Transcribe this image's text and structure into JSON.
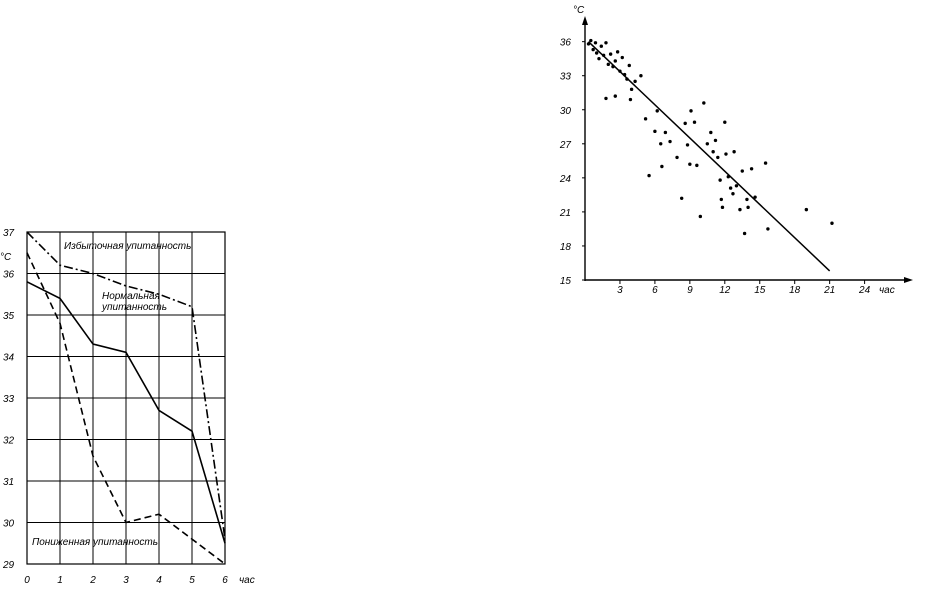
{
  "chart_data": [
    {
      "type": "line",
      "title": "",
      "xlabel": "час",
      "ylabel": "°C",
      "x_ticks": [
        "0",
        "1",
        "2",
        "3",
        "4",
        "5",
        "6"
      ],
      "y_ticks": [
        "29",
        "30",
        "31",
        "32",
        "33",
        "34",
        "35",
        "36",
        "37"
      ],
      "xlim": [
        0,
        6
      ],
      "ylim": [
        29,
        37
      ],
      "grid": true,
      "x": [
        0,
        1,
        2,
        3,
        4,
        5,
        6
      ],
      "series": [
        {
          "name": "Нормальная упитанность",
          "style": "solid",
          "values": [
            35.8,
            35.4,
            34.3,
            34.1,
            32.7,
            32.2,
            29.5
          ]
        },
        {
          "name": "Избыточная упитанность",
          "style": "dashdot",
          "values": [
            37.0,
            36.2,
            36.0,
            35.7,
            35.5,
            35.2,
            29.6
          ]
        },
        {
          "name": "Пониженная упитанность",
          "style": "dashed",
          "values": [
            36.5,
            34.8,
            31.6,
            30.0,
            30.2,
            29.6,
            29.0
          ]
        }
      ],
      "annotations": [
        "Избыточная упитанность",
        "Нормальная упитанность",
        "Пониженная упитанность"
      ]
    },
    {
      "type": "scatter",
      "title": "",
      "xlabel": "час",
      "ylabel": "°C",
      "x_ticks": [
        "3",
        "6",
        "9",
        "12",
        "15",
        "18",
        "21",
        "24"
      ],
      "y_ticks": [
        "15",
        "18",
        "21",
        "24",
        "27",
        "30",
        "33",
        "36"
      ],
      "xlim": [
        0,
        27
      ],
      "ylim": [
        15,
        37
      ],
      "grid": false,
      "points": [
        [
          0.3,
          35.8
        ],
        [
          0.5,
          36.1
        ],
        [
          0.7,
          35.3
        ],
        [
          0.9,
          35.9
        ],
        [
          1.0,
          35.0
        ],
        [
          1.2,
          34.5
        ],
        [
          1.4,
          35.6
        ],
        [
          1.6,
          34.8
        ],
        [
          1.8,
          35.9
        ],
        [
          2.0,
          34.0
        ],
        [
          2.2,
          34.9
        ],
        [
          2.4,
          33.8
        ],
        [
          2.6,
          34.3
        ],
        [
          2.8,
          35.1
        ],
        [
          3.0,
          33.4
        ],
        [
          3.2,
          34.6
        ],
        [
          3.4,
          33.1
        ],
        [
          3.6,
          32.7
        ],
        [
          3.8,
          33.9
        ],
        [
          4.0,
          31.8
        ],
        [
          4.3,
          32.5
        ],
        [
          1.8,
          31.0
        ],
        [
          2.6,
          31.2
        ],
        [
          3.9,
          30.9
        ],
        [
          4.8,
          33.0
        ],
        [
          5.2,
          29.2
        ],
        [
          5.5,
          24.2
        ],
        [
          6.0,
          28.1
        ],
        [
          6.2,
          29.9
        ],
        [
          6.5,
          27.0
        ],
        [
          6.6,
          25.0
        ],
        [
          6.9,
          28.0
        ],
        [
          7.3,
          27.2
        ],
        [
          7.9,
          25.8
        ],
        [
          8.3,
          22.2
        ],
        [
          8.6,
          28.8
        ],
        [
          8.8,
          26.9
        ],
        [
          9.0,
          25.2
        ],
        [
          9.1,
          29.9
        ],
        [
          9.4,
          28.9
        ],
        [
          9.6,
          25.1
        ],
        [
          9.9,
          20.6
        ],
        [
          10.2,
          30.6
        ],
        [
          10.5,
          27.0
        ],
        [
          10.8,
          28.0
        ],
        [
          11.0,
          26.3
        ],
        [
          11.2,
          27.3
        ],
        [
          11.4,
          25.8
        ],
        [
          11.6,
          23.8
        ],
        [
          11.7,
          22.1
        ],
        [
          11.8,
          21.4
        ],
        [
          12.0,
          28.9
        ],
        [
          12.1,
          26.1
        ],
        [
          12.3,
          24.1
        ],
        [
          12.5,
          23.1
        ],
        [
          12.7,
          22.6
        ],
        [
          12.8,
          26.3
        ],
        [
          13.0,
          23.3
        ],
        [
          13.3,
          21.2
        ],
        [
          13.5,
          24.6
        ],
        [
          13.7,
          19.1
        ],
        [
          13.9,
          22.1
        ],
        [
          14.0,
          21.4
        ],
        [
          14.3,
          24.8
        ],
        [
          14.6,
          22.3
        ],
        [
          15.5,
          25.3
        ],
        [
          15.7,
          19.5
        ],
        [
          19.0,
          21.2
        ],
        [
          21.2,
          20.0
        ]
      ],
      "trend_line": {
        "x": [
          0.3,
          21.0
        ],
        "y": [
          36.0,
          15.8
        ]
      }
    }
  ]
}
